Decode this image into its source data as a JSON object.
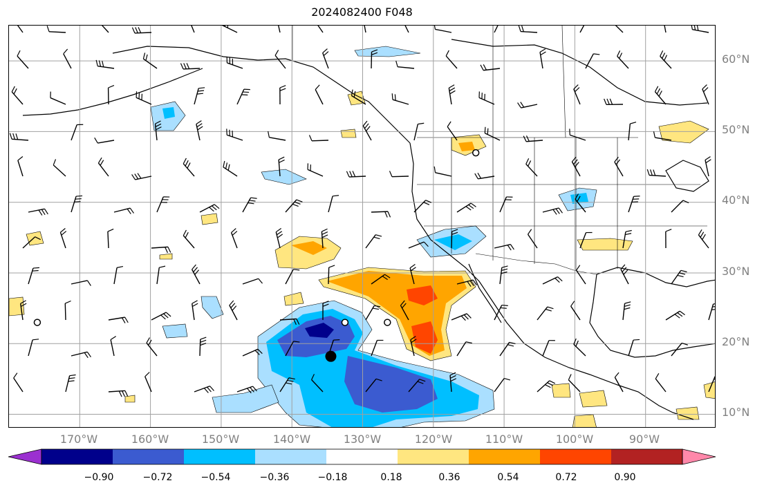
{
  "title": "2024082400 F048",
  "lat_labels": [
    "60°N",
    "50°N",
    "40°N",
    "30°N",
    "20°N",
    "10°N"
  ],
  "lon_labels": [
    "170°W",
    "160°W",
    "150°W",
    "140°W",
    "130°W",
    "120°W",
    "110°W",
    "100°W",
    "90°W"
  ],
  "colorbar": {
    "tick_labels": [
      "−0.90",
      "−0.72",
      "−0.54",
      "−0.36",
      "−0.18",
      "0.18",
      "0.36",
      "0.54",
      "0.72",
      "0.90"
    ],
    "colors": [
      "#9b30d0",
      "#00008b",
      "#3b5bd0",
      "#00bfff",
      "#aadfff",
      "#ffffff",
      "#ffe680",
      "#ffa500",
      "#ff4500",
      "#b22222",
      "#ff88aa"
    ]
  },
  "map": {
    "lon_range": [
      -180,
      -80
    ],
    "lat_range": [
      8,
      65
    ],
    "contour_colors": {
      "neg_090": "#00008b",
      "neg_072": "#3b5bd0",
      "neg_054": "#00bfff",
      "neg_036": "#aadfff",
      "pos_018": "#ffe680",
      "pos_036": "#ffa500",
      "pos_054": "#ff4500"
    },
    "markers": [
      {
        "type": "hurricane-dot",
        "lon": -134.5,
        "lat": 18.2
      },
      {
        "type": "circle",
        "lon": -176,
        "lat": 23
      },
      {
        "type": "circle",
        "lon": -132.5,
        "lat": 23
      },
      {
        "type": "circle",
        "lon": -126.5,
        "lat": 23
      },
      {
        "type": "circle",
        "lon": -114,
        "lat": 47
      }
    ]
  }
}
